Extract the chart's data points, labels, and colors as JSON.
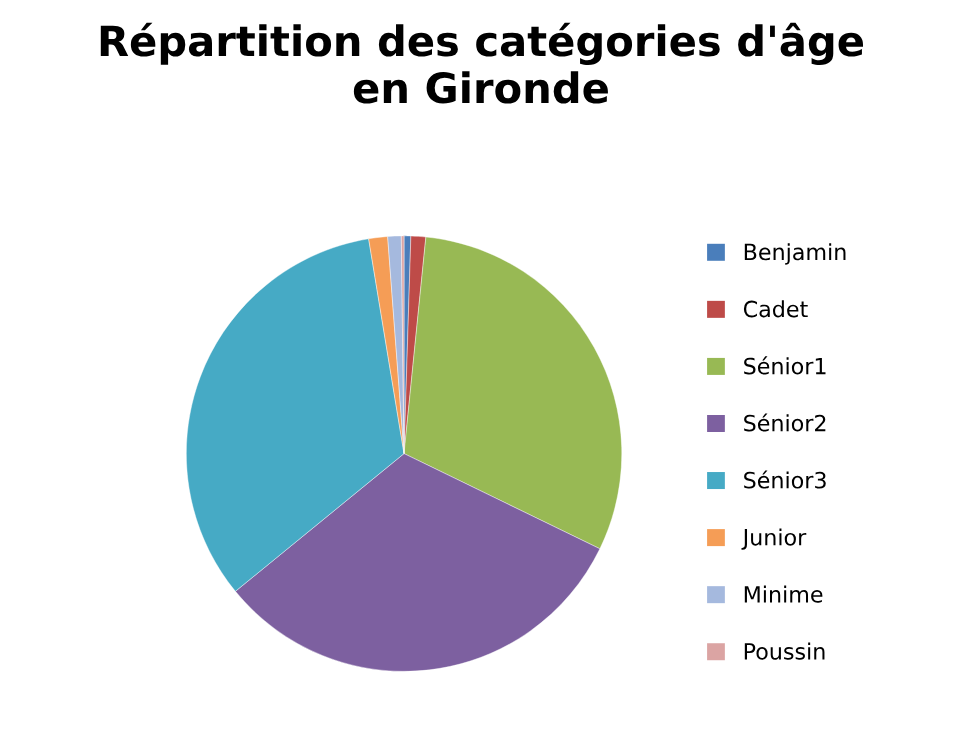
{
  "chart_data": {
    "type": "pie",
    "title": "Répartition des catégories d'âge\nen Gironde",
    "categories": [
      "Benjamin",
      "Cadet",
      "Sénior1",
      "Sénior2",
      "Sénior3",
      "Junior",
      "Minime",
      "Poussin"
    ],
    "values": [
      0.5,
      1.1,
      30.6,
      31.9,
      33.3,
      1.4,
      1.0,
      0.2
    ],
    "colors": [
      "#4a7ebb",
      "#be4b48",
      "#98b954",
      "#7d60a0",
      "#46aac5",
      "#f59d56",
      "#a5b9de",
      "#dba4a3"
    ],
    "legend": "right"
  }
}
